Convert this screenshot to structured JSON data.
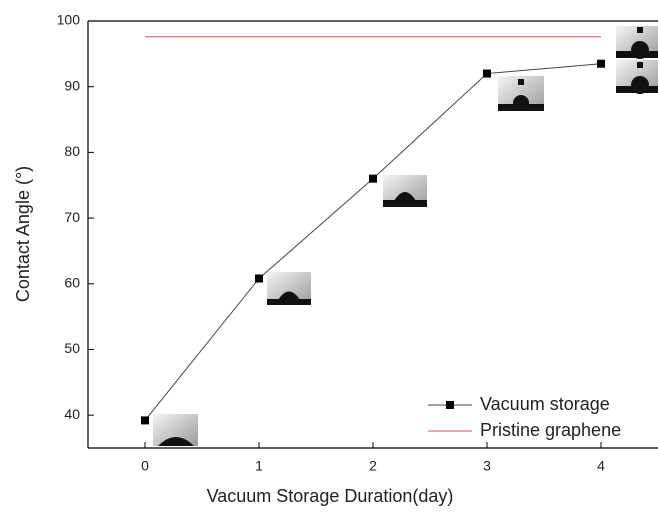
{
  "chart_data": {
    "type": "line",
    "x_label": "Vacuum Storage Duration(day)",
    "y_label": "Contact Angle (°)",
    "xlim": [
      -0.5,
      4.5
    ],
    "xticks": [
      0,
      1,
      2,
      3,
      4
    ],
    "ylim": [
      35,
      100
    ],
    "yticks": [
      40,
      50,
      60,
      70,
      80,
      90,
      100
    ],
    "legend": "lower right",
    "series": [
      {
        "name": "Vacuum storage",
        "color": "#000000",
        "marker": "square",
        "x": [
          0,
          1,
          2,
          3,
          4
        ],
        "values": [
          39.2,
          60.8,
          76,
          92,
          93.5
        ]
      },
      {
        "name": "Pristine graphene",
        "color": "#d9534f",
        "marker": "none",
        "x": [
          0,
          4
        ],
        "values": [
          97.6,
          97.6
        ]
      }
    ]
  }
}
